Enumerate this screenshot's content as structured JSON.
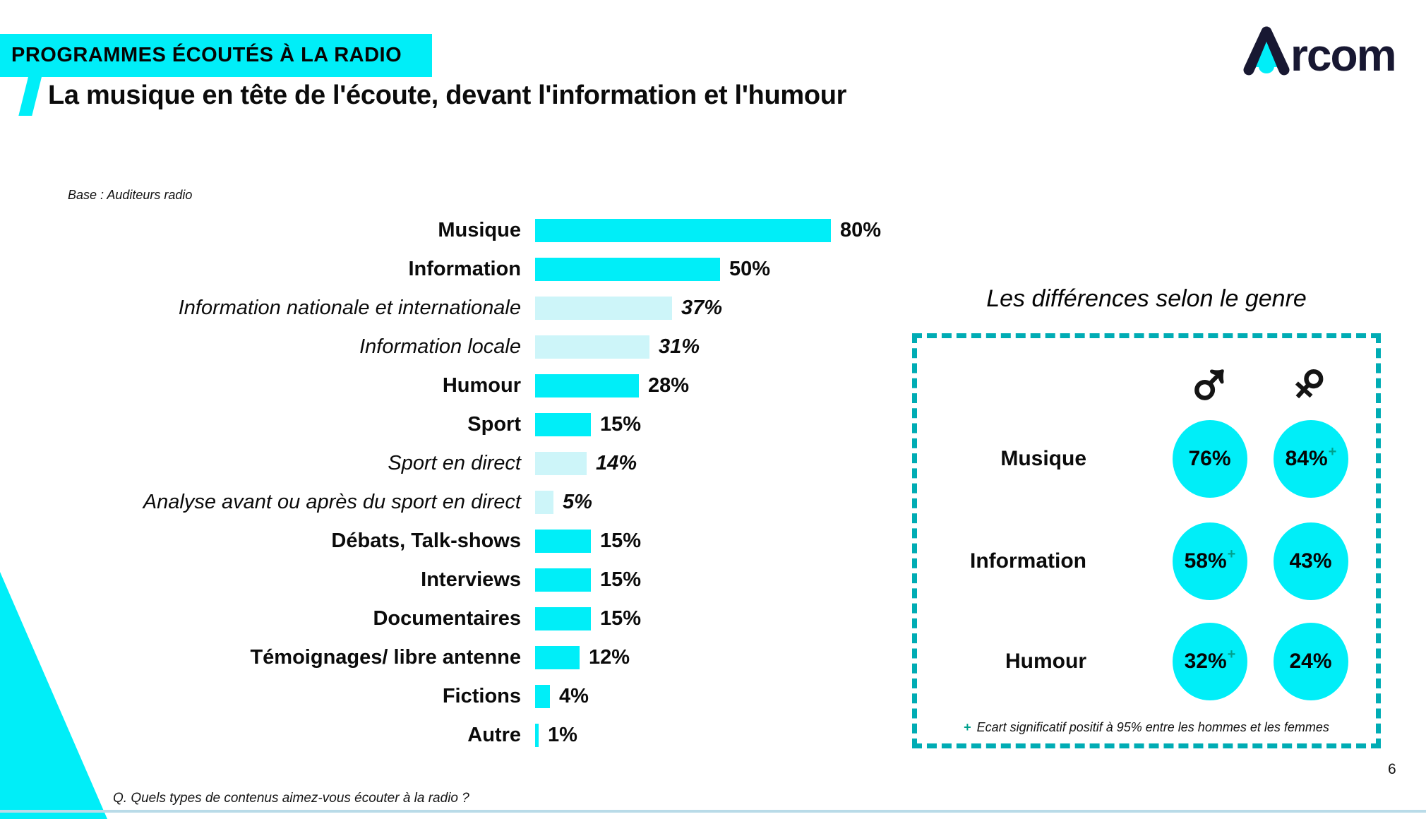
{
  "badge": {
    "label": "PROGRAMMES ÉCOUTÉS À LA RADIO"
  },
  "logo": {
    "name": "Arcom",
    "suffix": "rcom"
  },
  "title": "La musique en tête de l'écoute, devant l'information et l'humour",
  "base_note": "Base : Auditeurs radio",
  "colors": {
    "cyan": "#00EEF8",
    "light_cyan": "#CDF5F9",
    "dash_teal": "#00ACB4",
    "plus_teal": "#00A08C",
    "logo_navy": "#181832"
  },
  "chart_data": [
    {
      "type": "bar",
      "title": "Programmes écoutés à la radio",
      "xlabel": "",
      "ylabel": "",
      "unit": "%",
      "xlim": [
        0,
        80
      ],
      "orientation": "horizontal",
      "grid": false,
      "categories": [
        "Musique",
        "Information",
        "Information nationale et internationale",
        "Information locale",
        "Humour",
        "Sport",
        "Sport en direct",
        "Analyse avant ou après du sport en direct",
        "Débats, Talk-shows",
        "Interviews",
        "Documentaires",
        "Témoignages/ libre antenne",
        "Fictions",
        "Autre"
      ],
      "values": [
        80,
        50,
        37,
        31,
        28,
        15,
        14,
        5,
        15,
        15,
        15,
        12,
        4,
        1
      ],
      "display": [
        "80%",
        "50%",
        "37%",
        "31%",
        "28%",
        "15%",
        "14%",
        "5%",
        "15%",
        "15%",
        "15%",
        "12%",
        "4%",
        "1%"
      ],
      "subcategory": [
        false,
        false,
        true,
        true,
        false,
        false,
        true,
        true,
        false,
        false,
        false,
        false,
        false,
        false
      ]
    },
    {
      "type": "table",
      "title": "Les différences selon le genre",
      "columns": [
        "Hommes",
        "Femmes"
      ],
      "male_symbol": "♂",
      "female_symbol": "♀",
      "rows": [
        {
          "category": "Musique",
          "male": "76%",
          "male_sup": "",
          "female": "84%",
          "female_sup": "+"
        },
        {
          "category": "Information",
          "male": "58%",
          "male_sup": "+",
          "female": "43%",
          "female_sup": ""
        },
        {
          "category": "Humour",
          "male": "32%",
          "male_sup": "+",
          "female": "24%",
          "female_sup": ""
        }
      ],
      "footnote_marker": "+",
      "footnote": "Ecart significatif positif à 95% entre les hommes et les femmes"
    }
  ],
  "footer": {
    "question": "Q. Quels types de contenus aimez-vous écouter à la radio ?",
    "page_number": "6"
  }
}
